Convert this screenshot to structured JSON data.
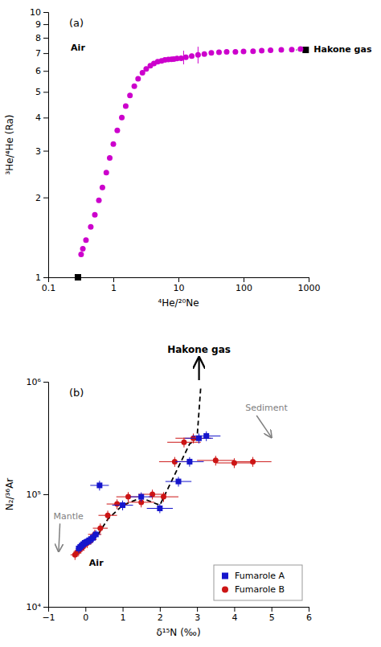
{
  "chart_data": [
    {
      "type": "scatter",
      "title": "(a)",
      "x_label": "⁴He/²⁰Ne",
      "y_label": "³He/⁴He (Ra)",
      "log": true,
      "grid": false,
      "xlim": [
        0.1,
        1000
      ],
      "ylim": [
        1,
        10
      ],
      "xticks": [
        0.1,
        1,
        10,
        100,
        1000
      ],
      "yticks": [
        1,
        2,
        3,
        4,
        5,
        6,
        7,
        8,
        9,
        10
      ],
      "series": [
        {
          "type": "scatter",
          "marker": "circle",
          "color": "#CC00CC",
          "x": [
            0.32,
            0.34,
            0.38,
            0.45,
            0.52,
            0.6,
            0.68,
            0.78,
            0.88,
            1.0,
            1.15,
            1.35,
            1.55,
            1.8,
            2.1,
            2.4,
            2.8,
            3.2,
            3.7,
            4.2,
            4.8,
            5.5,
            6.2,
            7.0,
            7.8,
            8.5,
            9.5,
            11.0,
            13.0,
            16.0,
            20.0,
            25.0,
            32.0,
            42.0,
            55.0,
            75.0,
            100.0,
            140.0,
            190.0,
            260.0,
            380.0,
            550.0,
            750.0
          ],
          "values": [
            1.22,
            1.28,
            1.38,
            1.55,
            1.72,
            1.95,
            2.18,
            2.48,
            2.82,
            3.18,
            3.58,
            4.0,
            4.42,
            4.85,
            5.25,
            5.6,
            5.9,
            6.1,
            6.28,
            6.4,
            6.5,
            6.55,
            6.6,
            6.62,
            6.64,
            6.65,
            6.68,
            6.7,
            6.75,
            6.82,
            6.9,
            6.95,
            7.02,
            7.05,
            7.08,
            7.08,
            7.1,
            7.12,
            7.15,
            7.18,
            7.2,
            7.22,
            7.25
          ]
        },
        {
          "type": "errorbar",
          "color": "#CC00CC",
          "x": [
            12.0,
            20.0
          ],
          "values": [
            6.75,
            6.9
          ],
          "y_errors": [
            0.4,
            0.5
          ]
        },
        {
          "name": "Air",
          "type": "scatter",
          "marker": "square",
          "color": "black",
          "x": [
            0.286
          ],
          "values": [
            1.0
          ]
        },
        {
          "type": "line",
          "line_style": "dotted",
          "color": "gray",
          "x": [
            550,
            900
          ],
          "values": [
            7.2,
            7.2
          ]
        },
        {
          "name": "Hakone gas",
          "type": "scatter",
          "marker": "square",
          "color": "black",
          "x": [
            900
          ],
          "values": [
            7.2
          ]
        }
      ]
    },
    {
      "type": "scatter",
      "title": "(b)",
      "x_label": "δ¹⁵N (‰)",
      "y_label": "N₂/³⁶Ar",
      "log": "y",
      "grid": false,
      "legend": "lower right",
      "xlim": [
        -1,
        6
      ],
      "ylim": [
        10000,
        1000000
      ],
      "xticks": [
        {
          "value": -1,
          "label": "−1"
        },
        0,
        1,
        2,
        3,
        4,
        5,
        6
      ],
      "yticks": [
        {
          "value": 10000,
          "label": "10⁴"
        },
        {
          "value": 100000,
          "label": "10⁵"
        },
        {
          "value": 1000000,
          "label": "10⁶"
        }
      ],
      "annotations": [
        "Air",
        "Mantle",
        "Sediment",
        "Hakone gas"
      ],
      "series": [
        {
          "type": "line",
          "line_style": "dashed",
          "color": "black",
          "x": [
            0.0,
            0.3,
            0.6,
            1.0,
            1.5,
            2.0,
            2.5,
            2.8,
            3.0,
            3.1
          ],
          "values": [
            36000,
            42000,
            60000,
            80000,
            93000,
            80000,
            175000,
            280000,
            315000,
            900000
          ]
        },
        {
          "name": "Fumarole A",
          "type": "scatter",
          "marker": "square",
          "color": "#1515CC",
          "x": [
            -0.18,
            -0.14,
            -0.1,
            -0.06,
            -0.02,
            0.02,
            0.06,
            0.1,
            0.15,
            0.2,
            0.28,
            0.38,
            1.0,
            1.5,
            2.0,
            2.5,
            2.8,
            3.05,
            3.25
          ],
          "values": [
            33000,
            34000,
            35000,
            36000,
            37000,
            37500,
            38000,
            39000,
            40000,
            41000,
            44000,
            120000,
            80000,
            95000,
            75000,
            130000,
            195000,
            315000,
            330000
          ],
          "x_errors": [
            0.08,
            0.08,
            0.08,
            0.08,
            0.08,
            0.08,
            0.08,
            0.08,
            0.1,
            0.1,
            0.12,
            0.25,
            0.28,
            0.3,
            0.35,
            0.35,
            0.38,
            0.38,
            0.38
          ],
          "y_errors": [
            3000,
            3000,
            3000,
            3000,
            3000,
            3000,
            3000,
            3000,
            4000,
            4000,
            4000,
            12000,
            8000,
            9000,
            7000,
            13000,
            19000,
            32000,
            33000
          ]
        },
        {
          "name": "Fumarole B",
          "type": "scatter",
          "marker": "circle",
          "color": "#CC1515",
          "x": [
            -0.28,
            -0.2,
            -0.12,
            -0.04,
            0.05,
            0.14,
            0.25,
            0.4,
            0.6,
            0.85,
            1.15,
            1.5,
            1.8,
            2.1,
            2.4,
            2.65,
            2.9,
            3.5,
            4.0,
            4.5
          ],
          "values": [
            29000,
            31000,
            33000,
            35000,
            37000,
            39500,
            44000,
            50000,
            65000,
            82000,
            95000,
            85000,
            100000,
            95000,
            195000,
            290000,
            315000,
            200000,
            190000,
            195000
          ],
          "x_errors": [
            0.12,
            0.12,
            0.12,
            0.12,
            0.14,
            0.16,
            0.18,
            0.2,
            0.25,
            0.28,
            0.32,
            0.35,
            0.38,
            0.4,
            0.42,
            0.45,
            0.48,
            0.5,
            0.5,
            0.5
          ],
          "y_errors": [
            2900,
            3100,
            3300,
            3500,
            3700,
            3950,
            4400,
            5000,
            6500,
            8200,
            9500,
            8500,
            10000,
            9500,
            19500,
            29000,
            31500,
            20000,
            19000,
            19500
          ]
        }
      ]
    }
  ]
}
